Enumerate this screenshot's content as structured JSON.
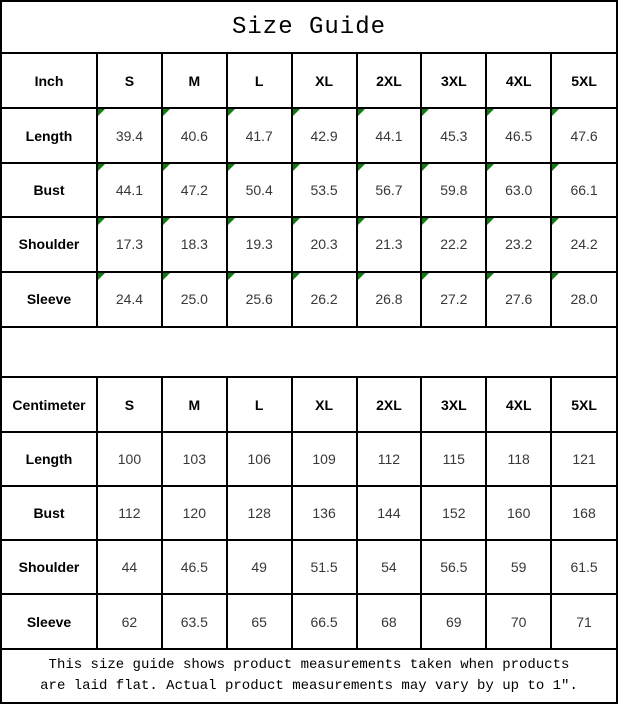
{
  "title": "Size Guide",
  "sizes": [
    "S",
    "M",
    "L",
    "XL",
    "2XL",
    "3XL",
    "4XL",
    "5XL"
  ],
  "inch_table": {
    "unit_label": "Inch",
    "rows": [
      {
        "label": "Length",
        "values": [
          "39.4",
          "40.6",
          "41.7",
          "42.9",
          "44.1",
          "45.3",
          "46.5",
          "47.6"
        ]
      },
      {
        "label": "Bust",
        "values": [
          "44.1",
          "47.2",
          "50.4",
          "53.5",
          "56.7",
          "59.8",
          "63.0",
          "66.1"
        ]
      },
      {
        "label": "Shoulder",
        "values": [
          "17.3",
          "18.3",
          "19.3",
          "20.3",
          "21.3",
          "22.2",
          "23.2",
          "24.2"
        ]
      },
      {
        "label": "Sleeve",
        "values": [
          "24.4",
          "25.0",
          "25.6",
          "26.2",
          "26.8",
          "27.2",
          "27.6",
          "28.0"
        ]
      }
    ]
  },
  "cm_table": {
    "unit_label": "Centimeter",
    "rows": [
      {
        "label": "Length",
        "values": [
          "100",
          "103",
          "106",
          "109",
          "112",
          "115",
          "118",
          "121"
        ]
      },
      {
        "label": "Bust",
        "values": [
          "112",
          "120",
          "128",
          "136",
          "144",
          "152",
          "160",
          "168"
        ]
      },
      {
        "label": "Shoulder",
        "values": [
          "44",
          "46.5",
          "49",
          "51.5",
          "54",
          "56.5",
          "59",
          "61.5"
        ]
      },
      {
        "label": "Sleeve",
        "values": [
          "62",
          "63.5",
          "65",
          "66.5",
          "68",
          "69",
          "70",
          "71"
        ]
      }
    ]
  },
  "footer": {
    "line1": "This size guide shows product measurements taken when products",
    "line2": "are laid flat. Actual product measurements may vary by up to 1″."
  },
  "colors": {
    "border": "#000000",
    "marker_green": "#117a11",
    "value_text": "#383838",
    "background": "#ffffff"
  },
  "chart_data": [
    {
      "type": "table",
      "title": "Size Guide",
      "unit": "Inch",
      "columns": [
        "Inch",
        "S",
        "M",
        "L",
        "XL",
        "2XL",
        "3XL",
        "4XL",
        "5XL"
      ],
      "rows": [
        [
          "Length",
          39.4,
          40.6,
          41.7,
          42.9,
          44.1,
          45.3,
          46.5,
          47.6
        ],
        [
          "Bust",
          44.1,
          47.2,
          50.4,
          53.5,
          56.7,
          59.8,
          63.0,
          66.1
        ],
        [
          "Shoulder",
          17.3,
          18.3,
          19.3,
          20.3,
          21.3,
          22.2,
          23.2,
          24.2
        ],
        [
          "Sleeve",
          24.4,
          25.0,
          25.6,
          26.2,
          26.8,
          27.2,
          27.6,
          28.0
        ]
      ]
    },
    {
      "type": "table",
      "title": "Size Guide",
      "unit": "Centimeter",
      "columns": [
        "Centimeter",
        "S",
        "M",
        "L",
        "XL",
        "2XL",
        "3XL",
        "4XL",
        "5XL"
      ],
      "rows": [
        [
          "Length",
          100,
          103,
          106,
          109,
          112,
          115,
          118,
          121
        ],
        [
          "Bust",
          112,
          120,
          128,
          136,
          144,
          152,
          160,
          168
        ],
        [
          "Shoulder",
          44,
          46.5,
          49,
          51.5,
          54,
          56.5,
          59,
          61.5
        ],
        [
          "Sleeve",
          62,
          63.5,
          65,
          66.5,
          68,
          69,
          70,
          71
        ]
      ]
    }
  ]
}
